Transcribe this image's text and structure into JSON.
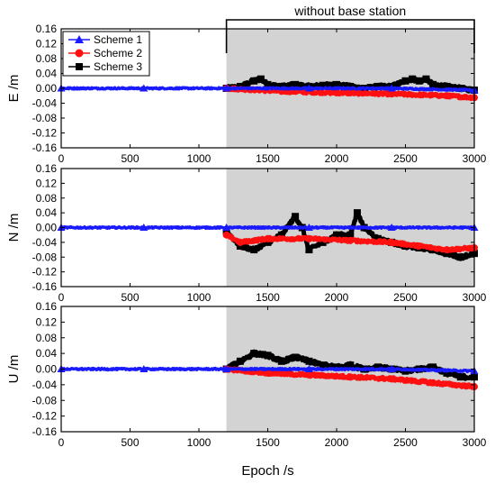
{
  "annotation": {
    "text": "without  base  station",
    "x_range": [
      1200,
      3000
    ]
  },
  "colors": {
    "scheme1": "#1a1aff",
    "scheme2": "#ff1010",
    "scheme3": "#000000",
    "shade": "#d3d3d3"
  },
  "chart_data": [
    {
      "type": "scatter",
      "ylabel": "E /m",
      "xlabel": "",
      "xlim": [
        0,
        3000
      ],
      "ylim": [
        -0.16,
        0.16
      ],
      "xticks": [
        "0",
        "500",
        "1000",
        "1500",
        "2000",
        "2500",
        "3000"
      ],
      "yticks": [
        "0.16",
        "0.12",
        "0.08",
        "0.04",
        "0.00",
        "-0.04",
        "-0.08",
        "-0.12",
        "-0.16"
      ],
      "legend": {
        "placement": "top-left",
        "entries": [
          "Scheme 1",
          "Scheme 2",
          "Scheme 3"
        ]
      },
      "series": [
        {
          "name": "Scheme 1",
          "marker": "triangle",
          "x": [
            0,
            600,
            1200,
            1800,
            2400,
            3000
          ],
          "y": [
            0.0,
            0.0,
            0.0,
            0.0,
            0.0,
            -0.005
          ]
        },
        {
          "name": "Scheme 2",
          "marker": "circle",
          "x": [
            1200,
            1600,
            2000,
            2400,
            2800,
            3000
          ],
          "y": [
            0.0,
            -0.008,
            -0.012,
            -0.015,
            -0.02,
            -0.025
          ]
        },
        {
          "name": "Scheme 3",
          "marker": "square",
          "x": [
            1200,
            1300,
            1400,
            1450,
            1500,
            1600,
            1700,
            1800,
            1900,
            2000,
            2100,
            2200,
            2300,
            2400,
            2500,
            2550,
            2600,
            2650,
            2700,
            2800,
            2900,
            3000
          ],
          "y": [
            0.0,
            0.005,
            0.02,
            0.025,
            0.01,
            0.005,
            0.01,
            0.005,
            0.008,
            0.01,
            0.005,
            0.0,
            0.005,
            0.005,
            0.02,
            0.025,
            0.02,
            0.025,
            0.01,
            0.005,
            0.0,
            -0.005
          ]
        }
      ]
    },
    {
      "type": "scatter",
      "ylabel": "N /m",
      "xlabel": "",
      "xlim": [
        0,
        3000
      ],
      "ylim": [
        -0.16,
        0.16
      ],
      "xticks": [
        "0",
        "500",
        "1000",
        "1500",
        "2000",
        "2500",
        "3000"
      ],
      "yticks": [
        "0.16",
        "0.12",
        "0.08",
        "0.04",
        "0.00",
        "-0.04",
        "-0.08",
        "-0.12",
        "-0.16"
      ],
      "series": [
        {
          "name": "Scheme 1",
          "marker": "triangle",
          "x": [
            0,
            600,
            1200,
            1800,
            2400,
            3000
          ],
          "y": [
            0.0,
            0.0,
            0.0,
            0.0,
            0.0,
            0.0
          ]
        },
        {
          "name": "Scheme 2",
          "marker": "circle",
          "x": [
            1200,
            1300,
            1500,
            1800,
            2100,
            2400,
            2600,
            2800,
            3000
          ],
          "y": [
            -0.02,
            -0.04,
            -0.03,
            -0.03,
            -0.035,
            -0.04,
            -0.05,
            -0.06,
            -0.055
          ]
        },
        {
          "name": "Scheme 3",
          "marker": "square",
          "x": [
            1200,
            1300,
            1400,
            1500,
            1600,
            1700,
            1750,
            1800,
            1900,
            2000,
            2100,
            2150,
            2200,
            2300,
            2400,
            2500,
            2600,
            2700,
            2800,
            2900,
            3000
          ],
          "y": [
            -0.01,
            -0.05,
            -0.06,
            -0.04,
            -0.02,
            0.03,
            0.0,
            -0.06,
            -0.04,
            -0.02,
            -0.02,
            0.04,
            0.0,
            -0.03,
            -0.04,
            -0.05,
            -0.055,
            -0.06,
            -0.07,
            -0.08,
            -0.07
          ]
        }
      ]
    },
    {
      "type": "scatter",
      "ylabel": "U /m",
      "xlabel": "Epoch /s",
      "xlim": [
        0,
        3000
      ],
      "ylim": [
        -0.16,
        0.16
      ],
      "xticks": [
        "0",
        "500",
        "1000",
        "1500",
        "2000",
        "2500",
        "3000"
      ],
      "yticks": [
        "0.16",
        "0.12",
        "0.08",
        "0.04",
        "0.00",
        "-0.04",
        "-0.08",
        "-0.12",
        "-0.16"
      ],
      "series": [
        {
          "name": "Scheme 1",
          "marker": "triangle",
          "x": [
            0,
            600,
            1200,
            1800,
            2400,
            3000
          ],
          "y": [
            0.0,
            0.0,
            0.0,
            0.0,
            0.0,
            -0.005
          ]
        },
        {
          "name": "Scheme 2",
          "marker": "circle",
          "x": [
            1200,
            1500,
            1800,
            2100,
            2400,
            2700,
            3000
          ],
          "y": [
            0.0,
            -0.01,
            -0.015,
            -0.02,
            -0.025,
            -0.035,
            -0.045
          ]
        },
        {
          "name": "Scheme 3",
          "marker": "square",
          "x": [
            1200,
            1300,
            1400,
            1500,
            1600,
            1700,
            1800,
            1900,
            2000,
            2100,
            2200,
            2300,
            2400,
            2500,
            2600,
            2700,
            2800,
            2900,
            3000
          ],
          "y": [
            0.0,
            0.02,
            0.04,
            0.035,
            0.02,
            0.03,
            0.02,
            0.01,
            0.005,
            0.01,
            0.0,
            0.005,
            0.0,
            -0.005,
            0.0,
            0.005,
            -0.01,
            -0.02,
            -0.02
          ]
        }
      ]
    }
  ]
}
